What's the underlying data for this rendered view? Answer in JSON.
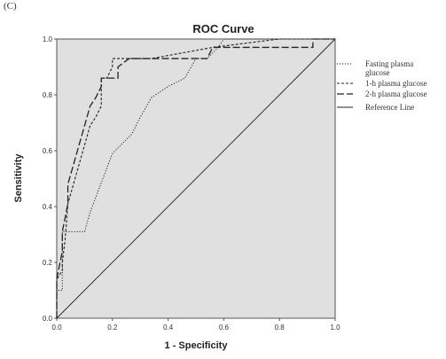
{
  "panel_label": "(C)",
  "chart_data": {
    "type": "line",
    "title": "ROC Curve",
    "xlabel": "1 - Specificity",
    "ylabel": "Sensitivity",
    "xlim": [
      0.0,
      1.0
    ],
    "ylim": [
      0.0,
      1.0
    ],
    "xticks": [
      "0.0",
      "0.2",
      "0.4",
      "0.6",
      "0.8",
      "1.0"
    ],
    "yticks": [
      "0.0",
      "0.2",
      "0.4",
      "0.6",
      "0.8",
      "1.0"
    ],
    "grid": false,
    "background": "#e0e0e0",
    "legend_position": "right",
    "series": [
      {
        "name": "Fasting plasma glucose",
        "style": "dotted",
        "x": [
          0.0,
          0.0,
          0.02,
          0.02,
          0.04,
          0.1,
          0.12,
          0.2,
          0.27,
          0.3,
          0.34,
          0.4,
          0.46,
          0.5,
          0.54,
          0.58,
          0.6,
          0.62,
          0.92,
          0.95,
          1.0
        ],
        "y": [
          0.0,
          0.1,
          0.1,
          0.31,
          0.31,
          0.31,
          0.38,
          0.59,
          0.66,
          0.72,
          0.79,
          0.83,
          0.86,
          0.93,
          0.93,
          0.97,
          1.0,
          1.0,
          1.0,
          1.0,
          1.0
        ]
      },
      {
        "name": "1-h plasma glucose",
        "style": "short-dash",
        "x": [
          0.0,
          0.0,
          0.02,
          0.02,
          0.03,
          0.04,
          0.06,
          0.08,
          0.1,
          0.12,
          0.14,
          0.16,
          0.16,
          0.18,
          0.2,
          0.2,
          0.3,
          0.34,
          0.56,
          0.8,
          0.94,
          0.98,
          1.0
        ],
        "y": [
          0.0,
          0.14,
          0.17,
          0.2,
          0.28,
          0.41,
          0.48,
          0.55,
          0.62,
          0.69,
          0.72,
          0.76,
          0.86,
          0.86,
          0.9,
          0.93,
          0.93,
          0.93,
          0.97,
          1.0,
          1.0,
          1.0,
          1.0
        ]
      },
      {
        "name": "2-h plasma glucose",
        "style": "long-dash",
        "x": [
          0.0,
          0.0,
          0.02,
          0.02,
          0.04,
          0.04,
          0.06,
          0.08,
          0.1,
          0.12,
          0.14,
          0.16,
          0.16,
          0.22,
          0.22,
          0.26,
          0.36,
          0.54,
          0.56,
          0.92,
          0.92,
          1.0
        ],
        "y": [
          0.0,
          0.14,
          0.24,
          0.31,
          0.41,
          0.48,
          0.55,
          0.62,
          0.69,
          0.76,
          0.79,
          0.83,
          0.86,
          0.86,
          0.9,
          0.93,
          0.93,
          0.93,
          0.97,
          0.97,
          1.0,
          1.0
        ]
      },
      {
        "name": "Reference Line",
        "style": "solid",
        "x": [
          0.0,
          1.0
        ],
        "y": [
          0.0,
          1.0
        ]
      }
    ]
  }
}
